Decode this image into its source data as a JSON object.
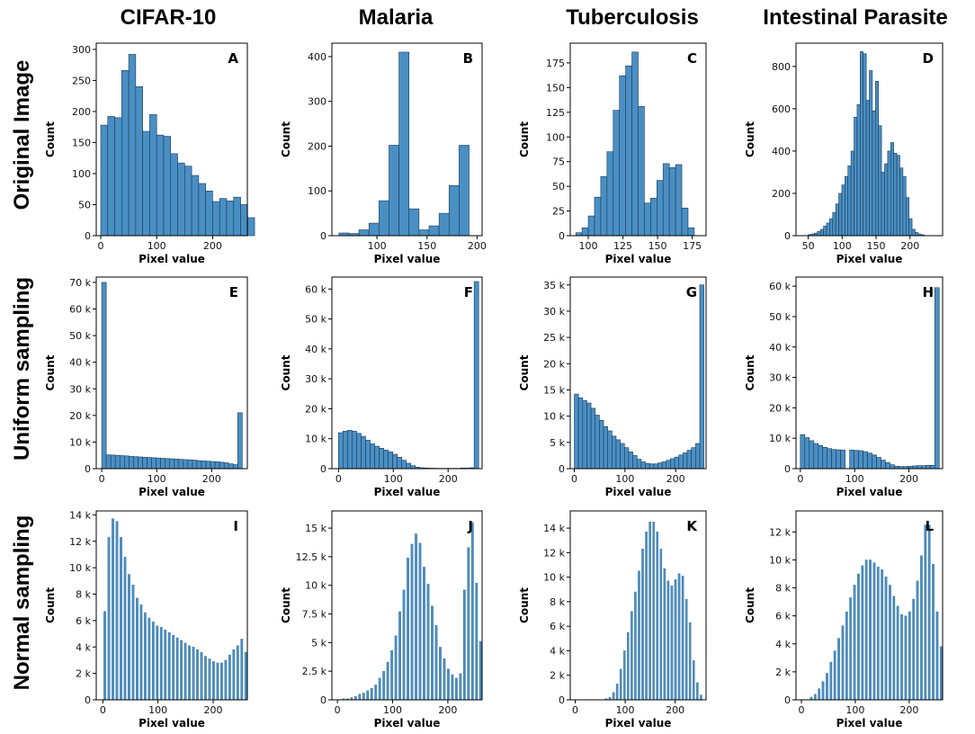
{
  "figure": {
    "column_titles": [
      "CIFAR-10",
      "Malaria",
      "Tuberculosis",
      "Intestinal Parasite"
    ],
    "row_titles": [
      "Original Image",
      "Uniform sampling",
      "Normal sampling"
    ]
  },
  "colors": {
    "bar_fill": "#4a8fc4",
    "bar_edge": "#1b3a55"
  },
  "chart_data": [
    {
      "type": "bar",
      "letter": "A",
      "title": "CIFAR-10 – Original Image",
      "xlabel": "Pixel value",
      "ylabel": "Count",
      "xlim": [
        -8,
        262
      ],
      "ylim": [
        0,
        310
      ],
      "xticks": [
        0,
        100,
        200
      ],
      "xtick_labels": [
        "0",
        "100",
        "200"
      ],
      "yticks": [
        0,
        50,
        100,
        150,
        200,
        250,
        300
      ],
      "ytick_labels": [
        "0",
        "50",
        "100",
        "150",
        "200",
        "250",
        "300"
      ],
      "bin_start": 0,
      "bin_width": 12.5,
      "thin": false,
      "values": [
        178,
        192,
        190,
        266,
        292,
        240,
        168,
        195,
        162,
        160,
        132,
        117,
        112,
        97,
        84,
        72,
        55,
        60,
        56,
        62,
        50,
        29
      ]
    },
    {
      "type": "bar",
      "letter": "B",
      "title": "Malaria – Original Image",
      "xlabel": "Pixel value",
      "ylabel": "Count",
      "xlim": [
        55,
        205
      ],
      "ylim": [
        0,
        430
      ],
      "xticks": [
        100,
        150,
        200
      ],
      "xtick_labels": [
        "100",
        "150",
        "200"
      ],
      "yticks": [
        0,
        100,
        200,
        300,
        400
      ],
      "ytick_labels": [
        "0",
        "100",
        "200",
        "300",
        "400"
      ],
      "bin_start": 62,
      "bin_width": 10,
      "thin": false,
      "values": [
        6,
        5,
        13,
        28,
        78,
        202,
        410,
        60,
        13,
        22,
        50,
        112,
        202
      ]
    },
    {
      "type": "bar",
      "letter": "C",
      "title": "Tuberculosis – Original Image",
      "xlabel": "Pixel value",
      "ylabel": "Count",
      "xlim": [
        87,
        185
      ],
      "ylim": [
        0,
        195
      ],
      "xticks": [
        100,
        125,
        150,
        175
      ],
      "xtick_labels": [
        "100",
        "125",
        "150",
        "175"
      ],
      "yticks": [
        0,
        25,
        50,
        75,
        100,
        125,
        150,
        175
      ],
      "ytick_labels": [
        "0",
        "25",
        "50",
        "75",
        "100",
        "125",
        "150",
        "175"
      ],
      "bin_start": 91,
      "bin_width": 4.5,
      "thin": false,
      "values": [
        3,
        8,
        20,
        39,
        60,
        85,
        127,
        162,
        172,
        186,
        131,
        33,
        38,
        56,
        73,
        69,
        72,
        28,
        8
      ]
    },
    {
      "type": "bar",
      "letter": "D",
      "title": "Intestinal Parasite – Original Image",
      "xlabel": "Pixel value",
      "ylabel": "Count",
      "xlim": [
        32,
        248
      ],
      "ylim": [
        0,
        910
      ],
      "xticks": [
        50,
        100,
        150,
        200
      ],
      "xtick_labels": [
        "50",
        "100",
        "150",
        "200"
      ],
      "yticks": [
        0,
        200,
        400,
        600,
        800
      ],
      "ytick_labels": [
        "0",
        "200",
        "400",
        "600",
        "800"
      ],
      "bin_start": 50,
      "bin_width": 4.5,
      "thin": false,
      "values": [
        5,
        8,
        12,
        20,
        30,
        45,
        60,
        80,
        110,
        150,
        200,
        240,
        280,
        330,
        400,
        560,
        620,
        870,
        860,
        640,
        780,
        590,
        730,
        520,
        300,
        340,
        400,
        440,
        390,
        380,
        320,
        280,
        180,
        80,
        30,
        15,
        8,
        4
      ]
    },
    {
      "type": "bar",
      "letter": "E",
      "title": "CIFAR-10 – Uniform sampling",
      "xlabel": "Pixel value",
      "ylabel": "Count",
      "xlim": [
        -10,
        265
      ],
      "ylim": [
        0,
        72000
      ],
      "xticks": [
        0,
        100,
        200
      ],
      "xtick_labels": [
        "0",
        "100",
        "200"
      ],
      "yticks": [
        0,
        10000,
        20000,
        30000,
        40000,
        50000,
        60000,
        70000
      ],
      "ytick_labels": [
        "0",
        "10 k",
        "20 k",
        "30 k",
        "40 k",
        "50 k",
        "60 k",
        "70 k"
      ],
      "bin_start": 0,
      "bin_width": 8.25,
      "thin": false,
      "values": [
        70000,
        5200,
        5100,
        5000,
        4900,
        4800,
        4600,
        4500,
        4400,
        4300,
        4200,
        4100,
        4000,
        3900,
        3800,
        3700,
        3600,
        3500,
        3400,
        3300,
        3200,
        3000,
        2900,
        2800,
        2700,
        2600,
        2400,
        2200,
        1800,
        1500,
        21000
      ]
    },
    {
      "type": "bar",
      "letter": "F",
      "title": "Malaria – Uniform sampling",
      "xlabel": "Pixel value",
      "ylabel": "Count",
      "xlim": [
        -12,
        262
      ],
      "ylim": [
        0,
        64000
      ],
      "xticks": [
        0,
        100,
        200
      ],
      "xtick_labels": [
        "0",
        "100",
        "200"
      ],
      "yticks": [
        0,
        10000,
        20000,
        30000,
        40000,
        50000,
        60000
      ],
      "ytick_labels": [
        "0",
        "10 k",
        "20 k",
        "30 k",
        "40 k",
        "50 k",
        "60 k"
      ],
      "bin_start": 0,
      "bin_width": 8.25,
      "thin": false,
      "values": [
        12000,
        12500,
        12800,
        12500,
        11800,
        10800,
        9500,
        8300,
        7500,
        6800,
        6200,
        5600,
        4800,
        3800,
        2800,
        1800,
        1000,
        500,
        300,
        200,
        150,
        120,
        100,
        100,
        100,
        100,
        100,
        200,
        200,
        300,
        62500
      ]
    },
    {
      "type": "bar",
      "letter": "G",
      "title": "Tuberculosis – Uniform sampling",
      "xlabel": "Pixel value",
      "ylabel": "Count",
      "xlim": [
        -8,
        260
      ],
      "ylim": [
        0,
        36500
      ],
      "xticks": [
        0,
        100,
        200
      ],
      "xtick_labels": [
        "0",
        "100",
        "200"
      ],
      "yticks": [
        0,
        5000,
        10000,
        15000,
        20000,
        25000,
        30000,
        35000
      ],
      "ytick_labels": [
        "0",
        "5 k",
        "10 k",
        "15 k",
        "20 k",
        "25 k",
        "30 k",
        "35 k"
      ],
      "bin_start": 0,
      "bin_width": 8.25,
      "thin": false,
      "values": [
        14200,
        13500,
        13000,
        12500,
        11500,
        10200,
        9200,
        8000,
        7200,
        6200,
        5500,
        4800,
        4000,
        3200,
        2500,
        1800,
        1300,
        1000,
        900,
        900,
        1100,
        1300,
        1600,
        1900,
        2200,
        2600,
        3000,
        3500,
        4000,
        4800,
        35000
      ]
    },
    {
      "type": "bar",
      "letter": "H",
      "title": "Intestinal Parasite – Uniform sampling",
      "xlabel": "Pixel value",
      "ylabel": "Count",
      "xlim": [
        -8,
        262
      ],
      "ylim": [
        0,
        63000
      ],
      "xticks": [
        0,
        100,
        200
      ],
      "xtick_labels": [
        "0",
        "100",
        "200"
      ],
      "yticks": [
        0,
        10000,
        20000,
        30000,
        40000,
        50000,
        60000
      ],
      "ytick_labels": [
        "0",
        "10 k",
        "20 k",
        "30 k",
        "40 k",
        "50 k",
        "60 k"
      ],
      "bin_start": 0,
      "bin_width": 8.25,
      "thin": false,
      "values": [
        11200,
        10200,
        9200,
        8300,
        7600,
        7000,
        6600,
        6300,
        6200,
        6100,
        0,
        6100,
        6000,
        5900,
        5600,
        5100,
        4500,
        3700,
        2800,
        2000,
        1300,
        800,
        700,
        700,
        800,
        900,
        1000,
        1000,
        1100,
        1100,
        59500
      ]
    },
    {
      "type": "bar",
      "letter": "I",
      "title": "CIFAR-10 – Normal sampling",
      "xlabel": "Pixel value",
      "ylabel": "Count",
      "xlim": [
        -12,
        262
      ],
      "ylim": [
        0,
        14300
      ],
      "xticks": [
        0,
        100,
        200
      ],
      "xtick_labels": [
        "0",
        "100",
        "200"
      ],
      "yticks": [
        0,
        2000,
        4000,
        6000,
        8000,
        10000,
        12000,
        14000
      ],
      "ytick_labels": [
        "0",
        "2 k",
        "4 k",
        "6 k",
        "8 k",
        "10 k",
        "12 k",
        "14 k"
      ],
      "bin_start": 0,
      "bin_width": 7.3,
      "thin": true,
      "values": [
        6700,
        12300,
        13700,
        13500,
        12300,
        10800,
        9500,
        8700,
        7700,
        7200,
        6600,
        6200,
        5900,
        5600,
        5500,
        5300,
        5100,
        4900,
        4700,
        4500,
        4300,
        4100,
        4000,
        3800,
        3600,
        3300,
        3100,
        2900,
        2800,
        2800,
        3000,
        3400,
        3800,
        4100,
        4600,
        3600
      ]
    },
    {
      "type": "bar",
      "letter": "J",
      "title": "Malaria – Normal sampling",
      "xlabel": "Pixel value",
      "ylabel": "Count",
      "xlim": [
        -10,
        262
      ],
      "ylim": [
        0,
        16500
      ],
      "xticks": [
        0,
        100,
        200
      ],
      "xtick_labels": [
        "0",
        "100",
        "200"
      ],
      "yticks": [
        0,
        2500,
        5000,
        7500,
        10000,
        12500,
        15000
      ],
      "ytick_labels": [
        "0",
        "2.5 k",
        "5 k",
        "7.5 k",
        "10 k",
        "12.5 k",
        "15 k"
      ],
      "bin_start": 0,
      "bin_width": 7.3,
      "thin": true,
      "values": [
        0,
        100,
        100,
        200,
        300,
        500,
        600,
        800,
        1000,
        1300,
        1900,
        2500,
        3300,
        4300,
        5600,
        7700,
        9600,
        12400,
        13600,
        14500,
        13700,
        11600,
        10100,
        8200,
        6500,
        4600,
        3600,
        2700,
        2200,
        1900,
        2300,
        9600,
        13300,
        15500,
        10200,
        5100
      ]
    },
    {
      "type": "bar",
      "letter": "K",
      "title": "Tuberculosis – Normal sampling",
      "xlabel": "Pixel value",
      "ylabel": "Count",
      "xlim": [
        -10,
        262
      ],
      "ylim": [
        0,
        15400
      ],
      "xticks": [
        0,
        100,
        200
      ],
      "xtick_labels": [
        "0",
        "100",
        "200"
      ],
      "yticks": [
        0,
        2000,
        4000,
        6000,
        8000,
        10000,
        12000,
        14000
      ],
      "ytick_labels": [
        "0",
        "2 k",
        "4 k",
        "6 k",
        "8 k",
        "10 k",
        "12 k",
        "14 k"
      ],
      "bin_start": 0,
      "bin_width": 7.3,
      "thin": true,
      "values": [
        0,
        0,
        0,
        0,
        0,
        0,
        0,
        0,
        100,
        200,
        600,
        1300,
        2500,
        4000,
        5500,
        7200,
        8800,
        10500,
        12300,
        13700,
        14500,
        14500,
        13700,
        12300,
        10700,
        9700,
        9300,
        9800,
        10300,
        10100,
        8200,
        6300,
        3200,
        1400,
        400,
        0
      ]
    },
    {
      "type": "bar",
      "letter": "L",
      "title": "Intestinal Parasite – Normal sampling",
      "xlabel": "Pixel value",
      "ylabel": "Count",
      "xlim": [
        -10,
        262
      ],
      "ylim": [
        0,
        13500
      ],
      "xticks": [
        0,
        100,
        200
      ],
      "xtick_labels": [
        "0",
        "100",
        "200"
      ],
      "yticks": [
        0,
        2000,
        4000,
        6000,
        8000,
        10000,
        12000
      ],
      "ytick_labels": [
        "0",
        "2 k",
        "4 k",
        "6 k",
        "8 k",
        "10 k",
        "12 k"
      ],
      "bin_start": 0,
      "bin_width": 7.3,
      "thin": true,
      "values": [
        0,
        0,
        200,
        400,
        800,
        1300,
        1900,
        2700,
        3500,
        4400,
        5300,
        6300,
        7300,
        8200,
        9000,
        9600,
        10000,
        10000,
        9800,
        9500,
        9300,
        8800,
        8200,
        7400,
        6700,
        6100,
        6000,
        6300,
        7200,
        8500,
        10300,
        12500,
        12500,
        9700,
        6300,
        3800
      ]
    }
  ]
}
